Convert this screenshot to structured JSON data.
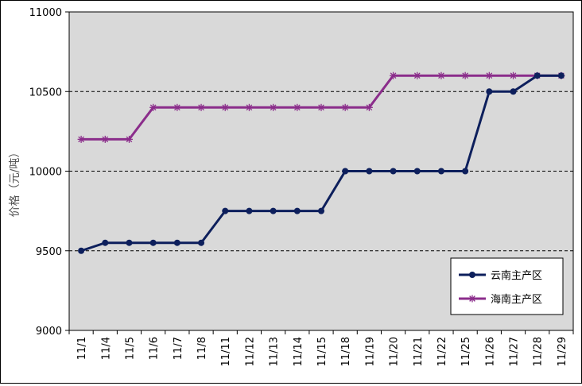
{
  "chart_data": {
    "type": "line",
    "title": "",
    "xlabel": "",
    "ylabel": "价格（元/吨）",
    "ylim": [
      9000,
      11000
    ],
    "yticks": [
      9000,
      9500,
      10000,
      10500,
      11000
    ],
    "ytick_labels": [
      "9000",
      "9500",
      "10000",
      "10500",
      "11000"
    ],
    "grid": "horizontal dashed",
    "legend_position": "bottom-right",
    "categories": [
      "11/1",
      "11/4",
      "11/5",
      "11/6",
      "11/7",
      "11/8",
      "11/11",
      "11/12",
      "11/13",
      "11/14",
      "11/15",
      "11/18",
      "11/19",
      "11/20",
      "11/21",
      "11/22",
      "11/25",
      "11/26",
      "11/27",
      "11/28",
      "11/29"
    ],
    "series": [
      {
        "name": "云南主产区",
        "color": "#0d1f5c",
        "marker": "circle",
        "values": [
          9500,
          9550,
          9550,
          9550,
          9550,
          9550,
          9750,
          9750,
          9750,
          9750,
          9750,
          10000,
          10000,
          10000,
          10000,
          10000,
          10000,
          10500,
          10500,
          10600,
          10600
        ]
      },
      {
        "name": "海南主产区",
        "color": "#8b2d8b",
        "marker": "asterisk",
        "values": [
          10200,
          10200,
          10200,
          10400,
          10400,
          10400,
          10400,
          10400,
          10400,
          10400,
          10400,
          10400,
          10400,
          10600,
          10600,
          10600,
          10600,
          10600,
          10600,
          10600,
          10600
        ]
      }
    ],
    "plot_background": "#d9d9d9"
  }
}
